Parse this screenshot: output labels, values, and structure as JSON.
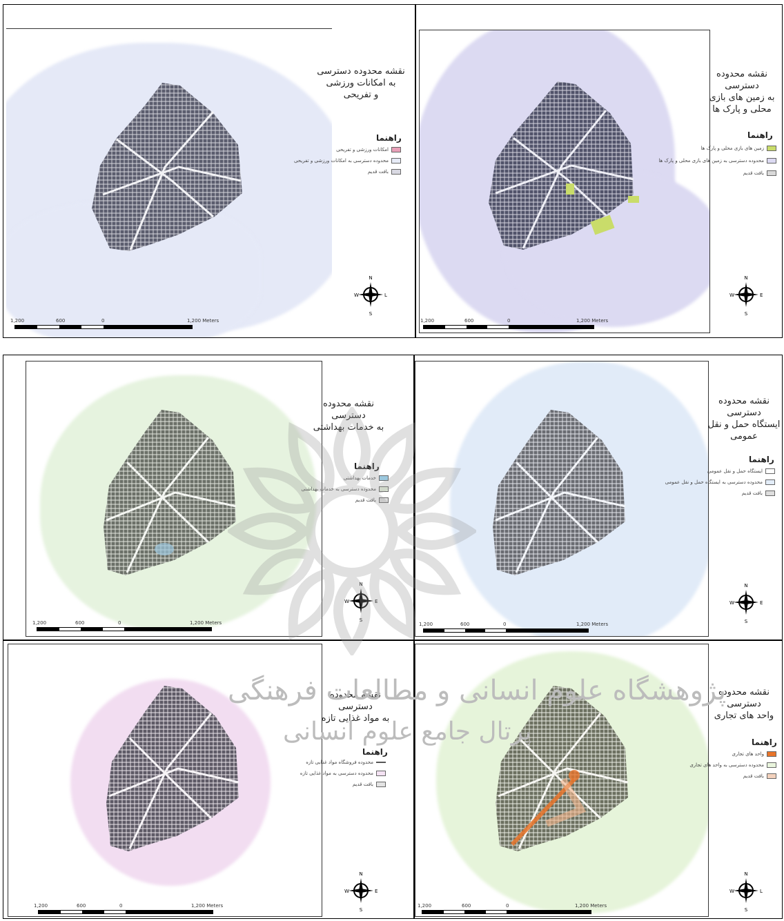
{
  "panels": [
    {
      "id": "sports",
      "title_lines": [
        "نقشه محدوده دسترسی",
        "به امکانات ورزشی",
        "و تفریحی"
      ],
      "legend_title": "راهنما",
      "legend_items": [
        {
          "label": "امکانات ورزشی و تفریحی",
          "color": "#e8a0b8"
        },
        {
          "label": "محدوده دسترسی به امکانات ورزشی و تفریحی",
          "color": "#e7ebf7"
        },
        {
          "label": "بافت قدیم",
          "color": "#d9d9e3"
        }
      ],
      "buffer_color": "#e3e8f7",
      "compass": {
        "n": "N",
        "s": "S",
        "w": "W",
        "e": "L"
      },
      "scale": [
        "1,200",
        "600",
        "0",
        "1,200 Meters"
      ]
    },
    {
      "id": "parks",
      "title_lines": [
        "نقشه محدوده دسترسی",
        "به زمین های بازی",
        "محلی و پارک ها"
      ],
      "legend_title": "راهنما",
      "legend_items": [
        {
          "label": "زمین های بازی محلی و پارک ها",
          "color": "#c9dc6a"
        },
        {
          "label": "محدوده دسترسی به زمین های بازی محلی و پارک ها",
          "color": "#dcdaf2"
        },
        {
          "label": "بافت قدیم",
          "color": "#d9d9d9"
        }
      ],
      "buffer_color": "#dcdaf2",
      "compass": {
        "n": "N",
        "s": "S",
        "w": "W",
        "e": "E"
      },
      "scale": [
        "1,200",
        "600",
        "0",
        "1,200 Meters"
      ]
    },
    {
      "id": "health",
      "title_lines": [
        "نقشه محدوده دسترسی",
        "به خدمات بهداشتی"
      ],
      "legend_title": "راهنما",
      "legend_items": [
        {
          "label": "خدمات بهداشتی",
          "color": "#9cc8de"
        },
        {
          "label": "محدوده دسترسی به خدمات بهداشتی",
          "color": "#e8f4df"
        },
        {
          "label": "بافت قدیم",
          "color": "#e0e0e0"
        }
      ],
      "buffer_color": "#e6f3df",
      "compass": {
        "n": "N",
        "s": "S",
        "w": "W",
        "e": "E"
      },
      "scale": [
        "1,200",
        "600",
        "0",
        "1,200 Meters"
      ]
    },
    {
      "id": "transit",
      "title_lines": [
        "نقشه محدوده دسترسی",
        "ایستگاه حمل و نقل",
        "عمومی"
      ],
      "legend_title": "راهنما",
      "legend_items": [
        {
          "label": "ایستگاه حمل و نقل عمومی",
          "color": "#ffffff"
        },
        {
          "label": "محدوده دسترسی به ایستگاه حمل و نقل عمومی",
          "color": "#e3edf9"
        },
        {
          "label": "بافت قدیم",
          "color": "#dedede"
        }
      ],
      "buffer_color": "#e1ebf8",
      "compass": {
        "n": "N",
        "s": "S",
        "w": "W",
        "e": "E"
      },
      "scale": [
        "1,200",
        "600",
        "0",
        "1,200 Meters"
      ]
    },
    {
      "id": "food",
      "title_lines": [
        "نقشه محدوده دسترسی",
        "به مواد غذایی تازه"
      ],
      "legend_title": "راهنما",
      "legend_items": [
        {
          "label": "محدوده فروشگاه مواد غذایی تازه",
          "color": "#555555"
        },
        {
          "label": "محدوده دسترسی به مواد غذایی تازه",
          "color": "#f4e2f3"
        },
        {
          "label": "بافت قدیم",
          "color": "#e3e3e3"
        }
      ],
      "buffer_color": "#f2ddf1",
      "compass": {
        "n": "N",
        "s": "S",
        "w": "W",
        "e": "E"
      },
      "scale": [
        "1,200",
        "600",
        "0",
        "1,200 Meters"
      ]
    },
    {
      "id": "commercial",
      "title_lines": [
        "نقشه محدوده دسترسی",
        "واحد های تجاری"
      ],
      "legend_title": "راهنما",
      "legend_items": [
        {
          "label": "واحد های تجاری",
          "color": "#e8742a"
        },
        {
          "label": "محدوده دسترسی به واحد های تجاری",
          "color": "#e9f5dd"
        },
        {
          "label": "بافت قدیم",
          "color": "#f3d2bd"
        }
      ],
      "buffer_color": "#e6f4da",
      "compass": {
        "n": "N",
        "s": "S",
        "w": "W",
        "e": "L"
      },
      "scale": [
        "1,200",
        "600",
        "0",
        "1,200 Meters"
      ]
    }
  ],
  "watermark": {
    "line1": "پژوهشگاه علوم انسانی و مطالعات فرهنگی",
    "line2": "پرتال جامع علوم انسانی"
  }
}
